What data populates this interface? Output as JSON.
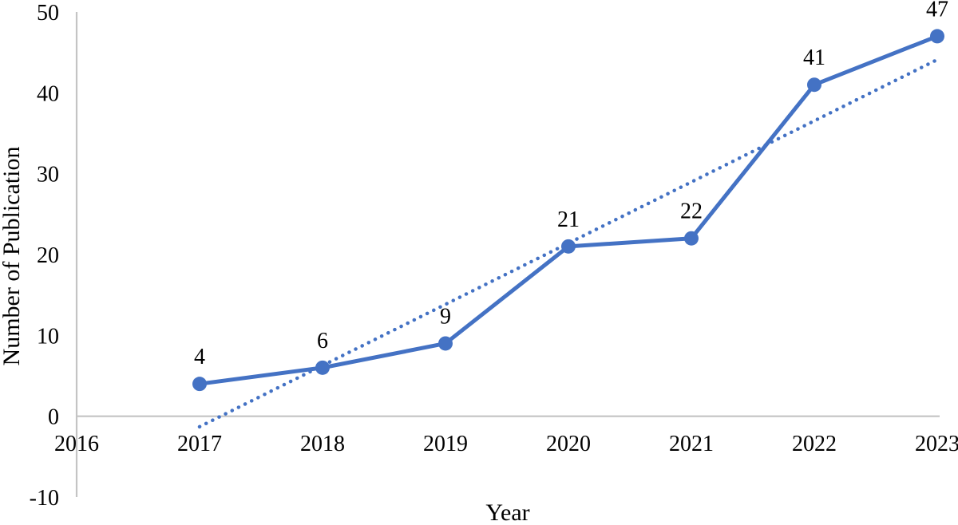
{
  "chart_data": {
    "type": "line",
    "title": "",
    "xlabel": "Year",
    "ylabel": "Number of Publication",
    "x": [
      2017,
      2018,
      2019,
      2020,
      2021,
      2022,
      2023
    ],
    "series": [
      {
        "name": "publications",
        "values": [
          4,
          6,
          9,
          21,
          22,
          41,
          47
        ],
        "color": "#4472C4",
        "marker": "circle",
        "line_style": "solid",
        "data_labels": [
          "4",
          "6",
          "9",
          "21",
          "22",
          "41",
          "47"
        ]
      }
    ],
    "trendline": {
      "name": "linear-trend",
      "line_style": "dotted",
      "color": "#4472C4",
      "x_start": 2017,
      "x_end": 2023,
      "value_start": -1.3,
      "value_end": 44.1
    },
    "x_ticks": [
      "2016",
      "2017",
      "2018",
      "2019",
      "2020",
      "2021",
      "2022",
      "2023"
    ],
    "y_ticks": [
      "50",
      "40",
      "30",
      "20",
      "10",
      "0",
      "-10"
    ],
    "xlim": [
      2016,
      2023
    ],
    "ylim": [
      -10,
      50
    ],
    "grid": false,
    "legend": "none",
    "axis_color": "#C4C4C4",
    "text_color": "#000000",
    "background": "#FFFFFF"
  }
}
